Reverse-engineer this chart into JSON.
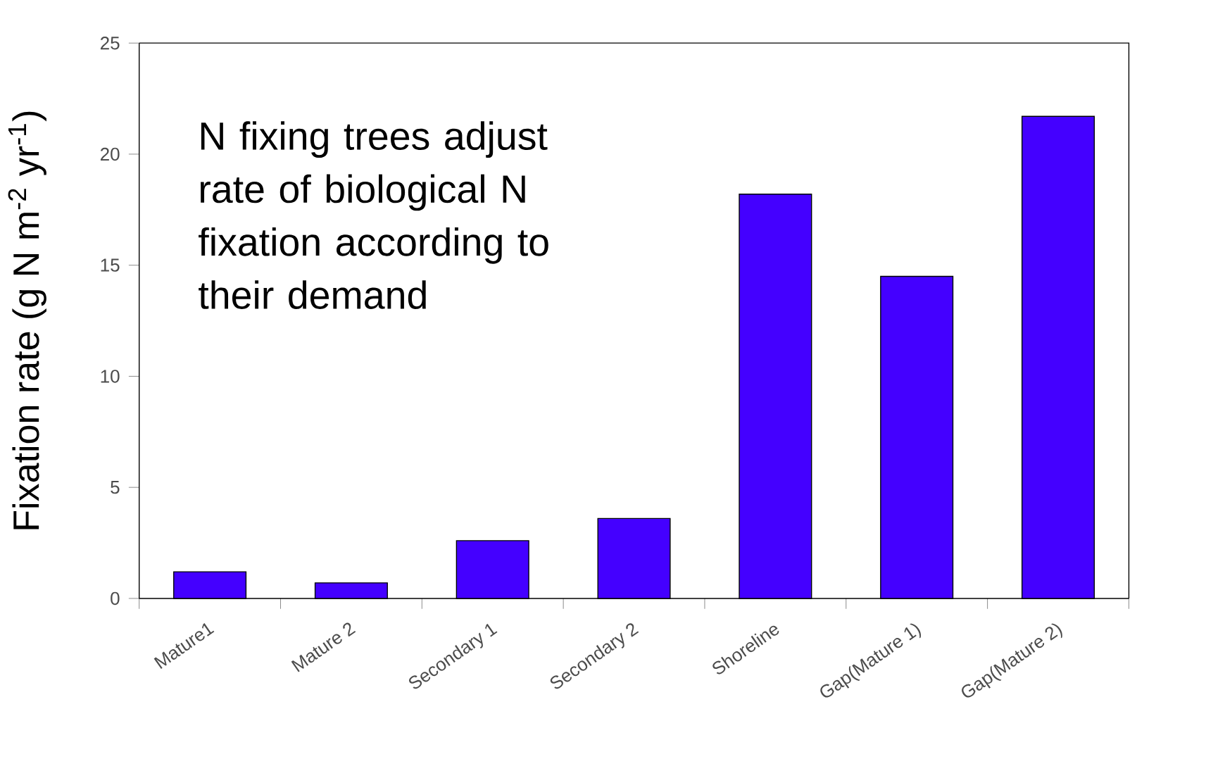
{
  "chart_data": {
    "type": "bar",
    "ylabel": "Fixation rate (g N m$^{-2}$ yr$^{-1}$)",
    "categories": [
      "Mature1",
      "Mature 2",
      "Secondary 1",
      "Secondary 2",
      "Shoreline",
      "Gap(Mature 1)",
      "Gap(Mature 2)"
    ],
    "values": [
      1.2,
      0.7,
      2.6,
      3.6,
      18.2,
      14.5,
      21.7
    ],
    "color": "#4400ff",
    "ylim": [
      0,
      25
    ],
    "yticks": [
      0,
      5,
      10,
      15,
      20,
      25
    ],
    "annotations": [
      "N fixing trees adjust rate of biological N fixation according to their demand"
    ]
  }
}
